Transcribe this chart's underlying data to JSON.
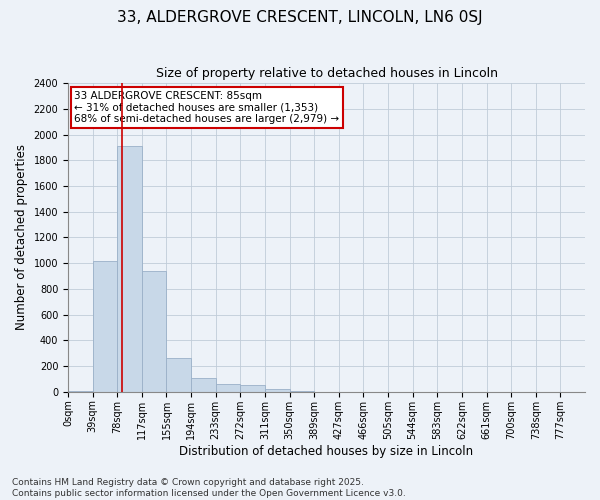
{
  "title_line1": "33, ALDERGROVE CRESCENT, LINCOLN, LN6 0SJ",
  "title_line2": "Size of property relative to detached houses in Lincoln",
  "xlabel": "Distribution of detached houses by size in Lincoln",
  "ylabel": "Number of detached properties",
  "bar_color": "#c8d8e8",
  "bar_edge_color": "#9ab0c8",
  "grid_color": "#c0ccd8",
  "background_color": "#edf2f8",
  "annotation_box_color": "#cc0000",
  "vline_color": "#cc0000",
  "bins": [
    "0sqm",
    "39sqm",
    "78sqm",
    "117sqm",
    "155sqm",
    "194sqm",
    "233sqm",
    "272sqm",
    "311sqm",
    "350sqm",
    "389sqm",
    "427sqm",
    "466sqm",
    "505sqm",
    "544sqm",
    "583sqm",
    "622sqm",
    "661sqm",
    "700sqm",
    "738sqm",
    "777sqm"
  ],
  "values": [
    10,
    1020,
    1910,
    940,
    265,
    110,
    60,
    50,
    25,
    5,
    0,
    0,
    0,
    0,
    0,
    0,
    0,
    0,
    0,
    0,
    0
  ],
  "ylim": [
    0,
    2400
  ],
  "yticks": [
    0,
    200,
    400,
    600,
    800,
    1000,
    1200,
    1400,
    1600,
    1800,
    2000,
    2200,
    2400
  ],
  "annotation_line1": "33 ALDERGROVE CRESCENT: 85sqm",
  "annotation_line2": "← 31% of detached houses are smaller (1,353)",
  "annotation_line3": "68% of semi-detached houses are larger (2,979) →",
  "vline_x": 85,
  "footer_line1": "Contains HM Land Registry data © Crown copyright and database right 2025.",
  "footer_line2": "Contains public sector information licensed under the Open Government Licence v3.0.",
  "title_fontsize": 11,
  "subtitle_fontsize": 9,
  "axis_label_fontsize": 8.5,
  "tick_fontsize": 7,
  "annotation_fontsize": 7.5,
  "footer_fontsize": 6.5
}
